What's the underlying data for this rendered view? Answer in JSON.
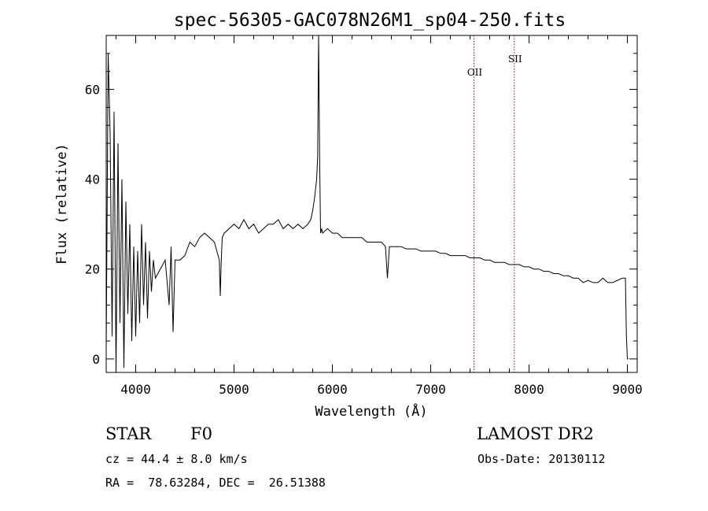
{
  "chart_data": {
    "type": "line",
    "title": "spec-56305-GAC078N26M1_sp04-250.fits",
    "xlabel": "Wavelength (Å)",
    "ylabel": "Flux (relative)",
    "xlim": [
      3700,
      9100
    ],
    "ylim": [
      -3,
      72
    ],
    "xticks": [
      4000,
      5000,
      6000,
      7000,
      8000,
      9000
    ],
    "yticks": [
      0,
      20,
      40,
      60
    ],
    "grid": false,
    "series": [
      {
        "color": "#000000",
        "x": [
          3700,
          3720,
          3740,
          3760,
          3780,
          3800,
          3820,
          3840,
          3860,
          3880,
          3900,
          3920,
          3940,
          3960,
          3980,
          4000,
          4020,
          4040,
          4060,
          4080,
          4100,
          4120,
          4140,
          4160,
          4180,
          4200,
          4250,
          4300,
          4340,
          4360,
          4380,
          4400,
          4450,
          4500,
          4550,
          4600,
          4650,
          4700,
          4750,
          4800,
          4850,
          4860,
          4870,
          4880,
          4900,
          4950,
          5000,
          5050,
          5100,
          5150,
          5200,
          5250,
          5300,
          5350,
          5400,
          5450,
          5500,
          5550,
          5600,
          5650,
          5700,
          5750,
          5780,
          5800,
          5820,
          5840,
          5850,
          5860,
          5870,
          5880,
          5890,
          5900,
          5950,
          6000,
          6050,
          6100,
          6150,
          6200,
          6250,
          6300,
          6350,
          6400,
          6450,
          6500,
          6540,
          6560,
          6580,
          6600,
          6650,
          6700,
          6750,
          6800,
          6850,
          6900,
          6950,
          7000,
          7050,
          7100,
          7150,
          7200,
          7250,
          7300,
          7350,
          7400,
          7450,
          7500,
          7550,
          7600,
          7650,
          7700,
          7750,
          7800,
          7850,
          7900,
          7950,
          8000,
          8050,
          8100,
          8150,
          8200,
          8250,
          8300,
          8350,
          8400,
          8450,
          8500,
          8550,
          8600,
          8650,
          8700,
          8750,
          8800,
          8850,
          8900,
          8950,
          8980,
          8990,
          9000,
          9010
        ],
        "y": [
          2,
          68,
          50,
          5,
          55,
          -3,
          48,
          8,
          40,
          -2,
          35,
          10,
          30,
          4,
          25,
          5,
          24,
          8,
          30,
          12,
          26,
          9,
          24,
          15,
          22,
          18,
          20,
          22,
          12,
          25,
          6,
          22,
          22,
          23,
          26,
          25,
          27,
          28,
          27,
          26,
          22,
          14,
          22,
          27,
          28,
          29,
          30,
          29,
          31,
          29,
          30,
          28,
          29,
          30,
          30,
          31,
          29,
          30,
          29,
          30,
          29,
          30,
          31,
          33,
          36,
          40,
          45,
          72,
          45,
          28,
          29,
          28,
          29,
          28,
          28,
          27,
          27,
          27,
          27,
          27,
          26,
          26,
          26,
          26,
          25,
          18,
          25,
          25,
          25,
          25,
          24.5,
          24.5,
          24.5,
          24,
          24,
          24,
          24,
          23.5,
          23.5,
          23,
          23,
          23,
          23,
          22.5,
          22.5,
          22.5,
          22,
          22,
          21.5,
          21.5,
          21.5,
          21,
          21,
          21,
          20.5,
          20.5,
          20,
          20,
          19.5,
          19.5,
          19,
          19,
          18.5,
          18.5,
          18,
          18,
          17,
          17.5,
          17,
          17,
          18,
          17,
          17,
          17.5,
          18,
          18,
          5,
          0,
          0
        ]
      }
    ],
    "annotations": [
      {
        "label": "OII",
        "x": 7440
      },
      {
        "label": "SII",
        "x": 7850
      }
    ]
  },
  "info": {
    "object_type": "STAR",
    "subclass": "F0",
    "survey": "LAMOST DR2",
    "velocity": "cz = 44.4 ± 8.0 km/s",
    "obs_date": "Obs-Date: 20130112",
    "coords": "RA =  78.63284, DEC =  26.51388"
  }
}
